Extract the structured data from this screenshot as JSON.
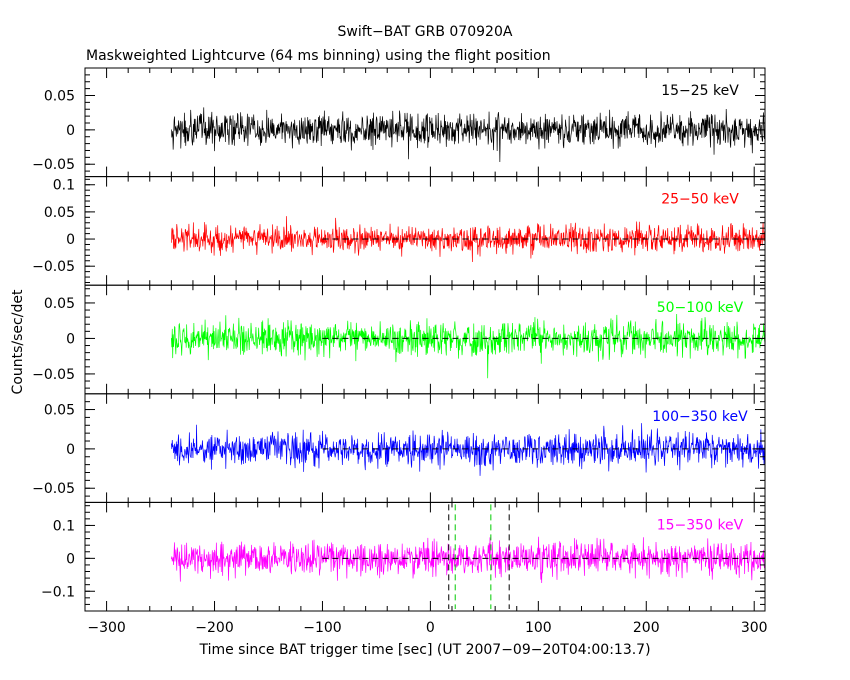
{
  "chart_data": {
    "type": "line",
    "title": "Swift−BAT GRB 070920A",
    "subtitle": "Maskweighted Lightcurve (64 ms binning) using the flight position",
    "xlabel": "Time since BAT trigger time [sec] (UT 2007−09−20T04:00:13.7)",
    "ylabel": "Counts/sec/det",
    "xlim": [
      -320,
      310
    ],
    "data_range": [
      -240,
      310
    ],
    "x_ticks": [
      -300,
      -200,
      -100,
      0,
      100,
      200,
      300
    ],
    "x_tick_labels": [
      "−300",
      "−200",
      "−100",
      "0",
      "100",
      "200",
      "300"
    ],
    "grid": false,
    "legend": "inside-right",
    "panels": [
      {
        "band": "15−25 keV",
        "color": "#000000",
        "ylim": [
          -0.068,
          0.09
        ],
        "y_ticks": [
          -0.05,
          0,
          0.05
        ],
        "y_tick_labels": [
          "−0.05",
          "0",
          "0.05"
        ],
        "noise_amplitude": 0.03,
        "zero_line": false
      },
      {
        "band": "25−50 keV",
        "color": "#ff0000",
        "ylim": [
          -0.085,
          0.115
        ],
        "y_ticks": [
          -0.05,
          0,
          0.05,
          0.1
        ],
        "y_tick_labels": [
          "−0.05",
          "0",
          "0.05",
          "0.1"
        ],
        "noise_amplitude": 0.032,
        "zero_line": true
      },
      {
        "band": "50−100 keV",
        "color": "#00ff00",
        "ylim": [
          -0.078,
          0.075
        ],
        "y_ticks": [
          -0.05,
          0,
          0.05
        ],
        "y_tick_labels": [
          "−0.05",
          "0",
          "0.05"
        ],
        "noise_amplitude": 0.03,
        "zero_line": true
      },
      {
        "band": "100−350 keV",
        "color": "#0000ff",
        "ylim": [
          -0.068,
          0.07
        ],
        "y_ticks": [
          -0.05,
          0,
          0.05
        ],
        "y_tick_labels": [
          "−0.05",
          "0",
          "0.05"
        ],
        "noise_amplitude": 0.027,
        "zero_line": true
      },
      {
        "band": "15−350 keV",
        "color": "#ff00ff",
        "ylim": [
          -0.16,
          0.17
        ],
        "y_ticks": [
          -0.1,
          0,
          0.1
        ],
        "y_tick_labels": [
          "−0.1",
          "0",
          "0.1"
        ],
        "noise_amplitude": 0.065,
        "zero_line": true
      }
    ],
    "markers": {
      "black_dashed_x": [
        17,
        73
      ],
      "green_dashed_x": [
        23,
        56
      ]
    }
  }
}
